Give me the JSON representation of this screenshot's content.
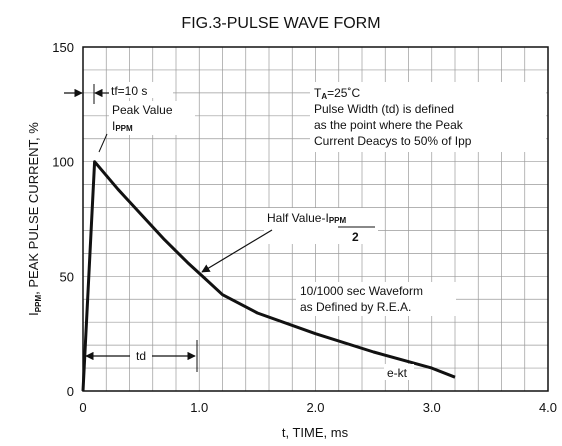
{
  "chart_data": {
    "type": "line",
    "title": "FIG.3-PULSE WAVE FORM",
    "xlabel": "t, TIME, ms",
    "ylabel_prefix": "I",
    "ylabel_sub": "PPM",
    "ylabel_rest": ", PEAK PULSE CURRENT, %",
    "xlim": [
      0,
      4.0
    ],
    "ylim": [
      0,
      150
    ],
    "x_ticks": [
      "0",
      "1.0",
      "2.0",
      "3.0",
      "4.0"
    ],
    "y_ticks": [
      "0",
      "50",
      "100",
      "150"
    ],
    "grid": true,
    "series": [
      {
        "x": [
          0,
          0.1,
          0.3,
          0.5,
          0.7,
          0.9,
          1.05,
          1.2,
          1.5,
          2.0,
          2.5,
          3.0,
          3.2
        ],
        "y": [
          0,
          100,
          88,
          77,
          66,
          56,
          49,
          42,
          34,
          25,
          17,
          10,
          6
        ]
      }
    ],
    "annotations": {
      "tf_label": "tf=10  s",
      "peak_value": "Peak Value",
      "ippm_prefix": "I",
      "ippm_sub": "PPM",
      "ta_prefix": "T",
      "ta_sub": "A",
      "ta_rest": "=25˚C",
      "pw_line1": "Pulse Width (td) is defined",
      "pw_line2": "as the point where the Peak",
      "pw_line3": "Current Deacys to 50% of Ipp",
      "half_value_prefix": "Half Value-I",
      "half_value_sub": "PPM",
      "half_value_denominator": "2",
      "waveform_line1": "10/1000  sec Waveform",
      "waveform_line2": "as Defined by R.E.A.",
      "td_label": "td",
      "ekt_label": "e-kt"
    }
  }
}
